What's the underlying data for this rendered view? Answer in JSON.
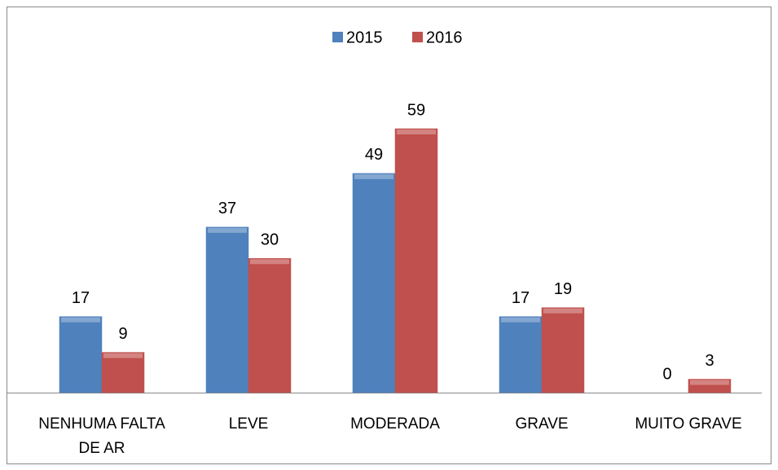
{
  "chart_data": {
    "type": "bar",
    "categories": [
      "NENHUMA FALTA DE AR",
      "LEVE",
      "MODERADA",
      "GRAVE",
      "MUITO GRAVE"
    ],
    "series": [
      {
        "name": "2015",
        "color": "#4f81bd",
        "values": [
          17,
          37,
          49,
          17,
          0
        ]
      },
      {
        "name": "2016",
        "color": "#c0504d",
        "values": [
          9,
          30,
          59,
          19,
          3
        ]
      }
    ],
    "legend": "top"
  }
}
